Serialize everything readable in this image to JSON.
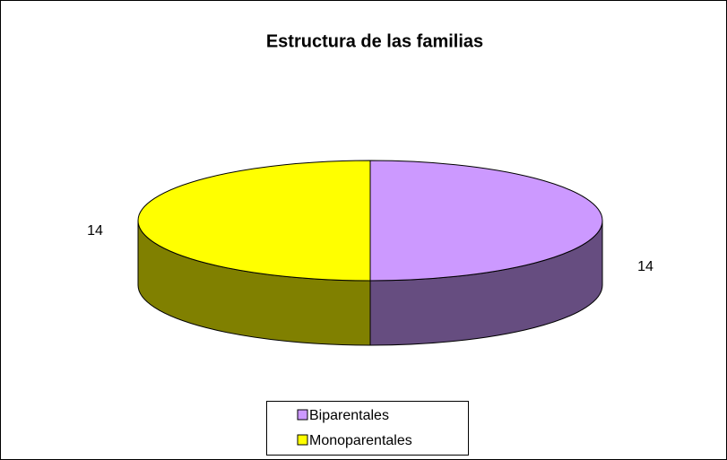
{
  "chart_data": {
    "type": "pie3d",
    "title": "Estructura de las familias",
    "categories": [
      "Biparentales",
      "Monoparentales"
    ],
    "values": [
      14,
      14
    ],
    "colors": [
      "#cc99ff",
      "#ffff00"
    ],
    "legend": "bottom"
  }
}
